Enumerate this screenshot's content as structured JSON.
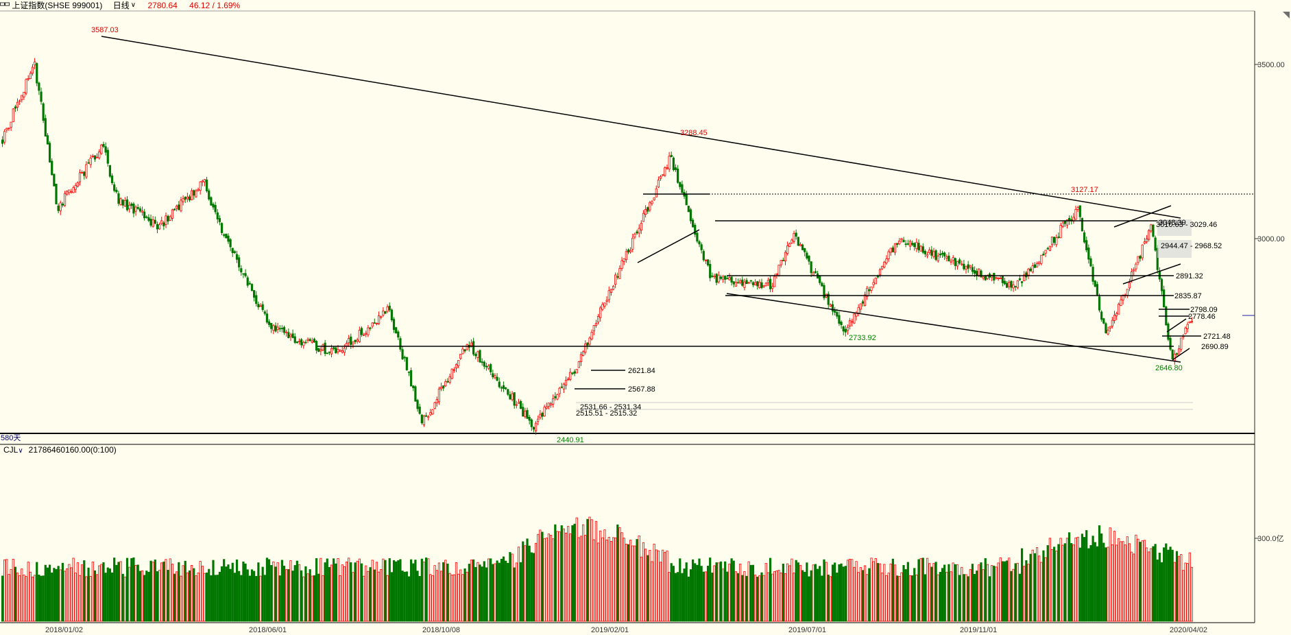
{
  "header": {
    "instrument": "上证指数(SHSE 999001)",
    "period": "日线",
    "price": "2780.64",
    "change": "46.12 / 1.69%"
  },
  "price_panel": {
    "bar_count_label": "580天",
    "yticks": [
      "3500.00",
      "3000.00"
    ],
    "annotations": {
      "high_2018": "3587.03",
      "high_2019a": "3288.45",
      "high_2019b": "3127.17",
      "low_2019_aug": "2733.92",
      "low_2018": "2440.91",
      "low_2020": "2646.80",
      "lvl_3048": "3048.39",
      "lvl_3010_band": "3010.63 - 3029.46",
      "lvl_2944_band": "2944.47 - 2968.52",
      "lvl_2891": "2891.32",
      "lvl_2835": "2835.87",
      "lvl_2798": "2798.09",
      "lvl_2778": "2778.46",
      "lvl_2721": "2721.48",
      "lvl_2690": "2690.89",
      "lvl_2621": "2621.84",
      "lvl_2567": "2567.88",
      "lvl_2531_band": "2531.66 - 2531.34",
      "lvl_2515_band": "2515.51 - 2515.32"
    }
  },
  "volume_panel": {
    "indicator": "CJL",
    "value": "21786460160.00(0:100)",
    "ytick": "300.0亿"
  },
  "x_axis": [
    "2018/01/02",
    "2018/06/01",
    "2018/10/08",
    "2019/02/01",
    "2019/07/01",
    "2019/11/01",
    "2020/04/02"
  ],
  "colors": {
    "up": "#ff0000",
    "down": "#007700",
    "background": "#fffeee",
    "high_label": "#e00000",
    "low_label": "#008000"
  },
  "chart_data": {
    "type": "candlestick",
    "title": "上证指数(SHSE 999001) 日线",
    "ylim": [
      2420,
      3700
    ],
    "x": [
      "2018/01/02",
      "2018/06/01",
      "2018/10/08",
      "2019/02/01",
      "2019/07/01",
      "2019/11/01",
      "2020/04/02"
    ],
    "close_path": [
      {
        "date": "2018/01/02",
        "value": 3348
      },
      {
        "date": "2018/01/24",
        "value": 3587
      },
      {
        "date": "2018/02/09",
        "value": 3129
      },
      {
        "date": "2018/03/12",
        "value": 3326
      },
      {
        "date": "2018/03/23",
        "value": 3153
      },
      {
        "date": "2018/04/20",
        "value": 3071
      },
      {
        "date": "2018/05/21",
        "value": 3213
      },
      {
        "date": "2018/06/01",
        "value": 3075
      },
      {
        "date": "2018/07/06",
        "value": 2747
      },
      {
        "date": "2018/08/20",
        "value": 2668
      },
      {
        "date": "2018/09/26",
        "value": 2806
      },
      {
        "date": "2018/10/19",
        "value": 2449
      },
      {
        "date": "2018/11/19",
        "value": 2703
      },
      {
        "date": "2019/01/04",
        "value": 2440
      },
      {
        "date": "2019/02/01",
        "value": 2618
      },
      {
        "date": "2019/04/08",
        "value": 3288
      },
      {
        "date": "2019/05/06",
        "value": 2906
      },
      {
        "date": "2019/06/17",
        "value": 2887
      },
      {
        "date": "2019/07/02",
        "value": 3045
      },
      {
        "date": "2019/08/06",
        "value": 2733
      },
      {
        "date": "2019/09/12",
        "value": 3031
      },
      {
        "date": "2019/12/02",
        "value": 2875
      },
      {
        "date": "2020/01/14",
        "value": 3127
      },
      {
        "date": "2020/02/03",
        "value": 2716
      },
      {
        "date": "2020/03/05",
        "value": 3071
      },
      {
        "date": "2020/03/19",
        "value": 2646
      },
      {
        "date": "2020/04/02",
        "value": 2780
      }
    ],
    "volume_reference": {
      "label": "300.0亿",
      "value": 300
    },
    "levels": [
      3048.39,
      3029.46,
      3010.63,
      2968.52,
      2944.47,
      2891.32,
      2835.87,
      2798.09,
      2778.46,
      2721.48,
      2690.89,
      2621.84,
      2567.88,
      2531.66,
      2515.51
    ]
  }
}
